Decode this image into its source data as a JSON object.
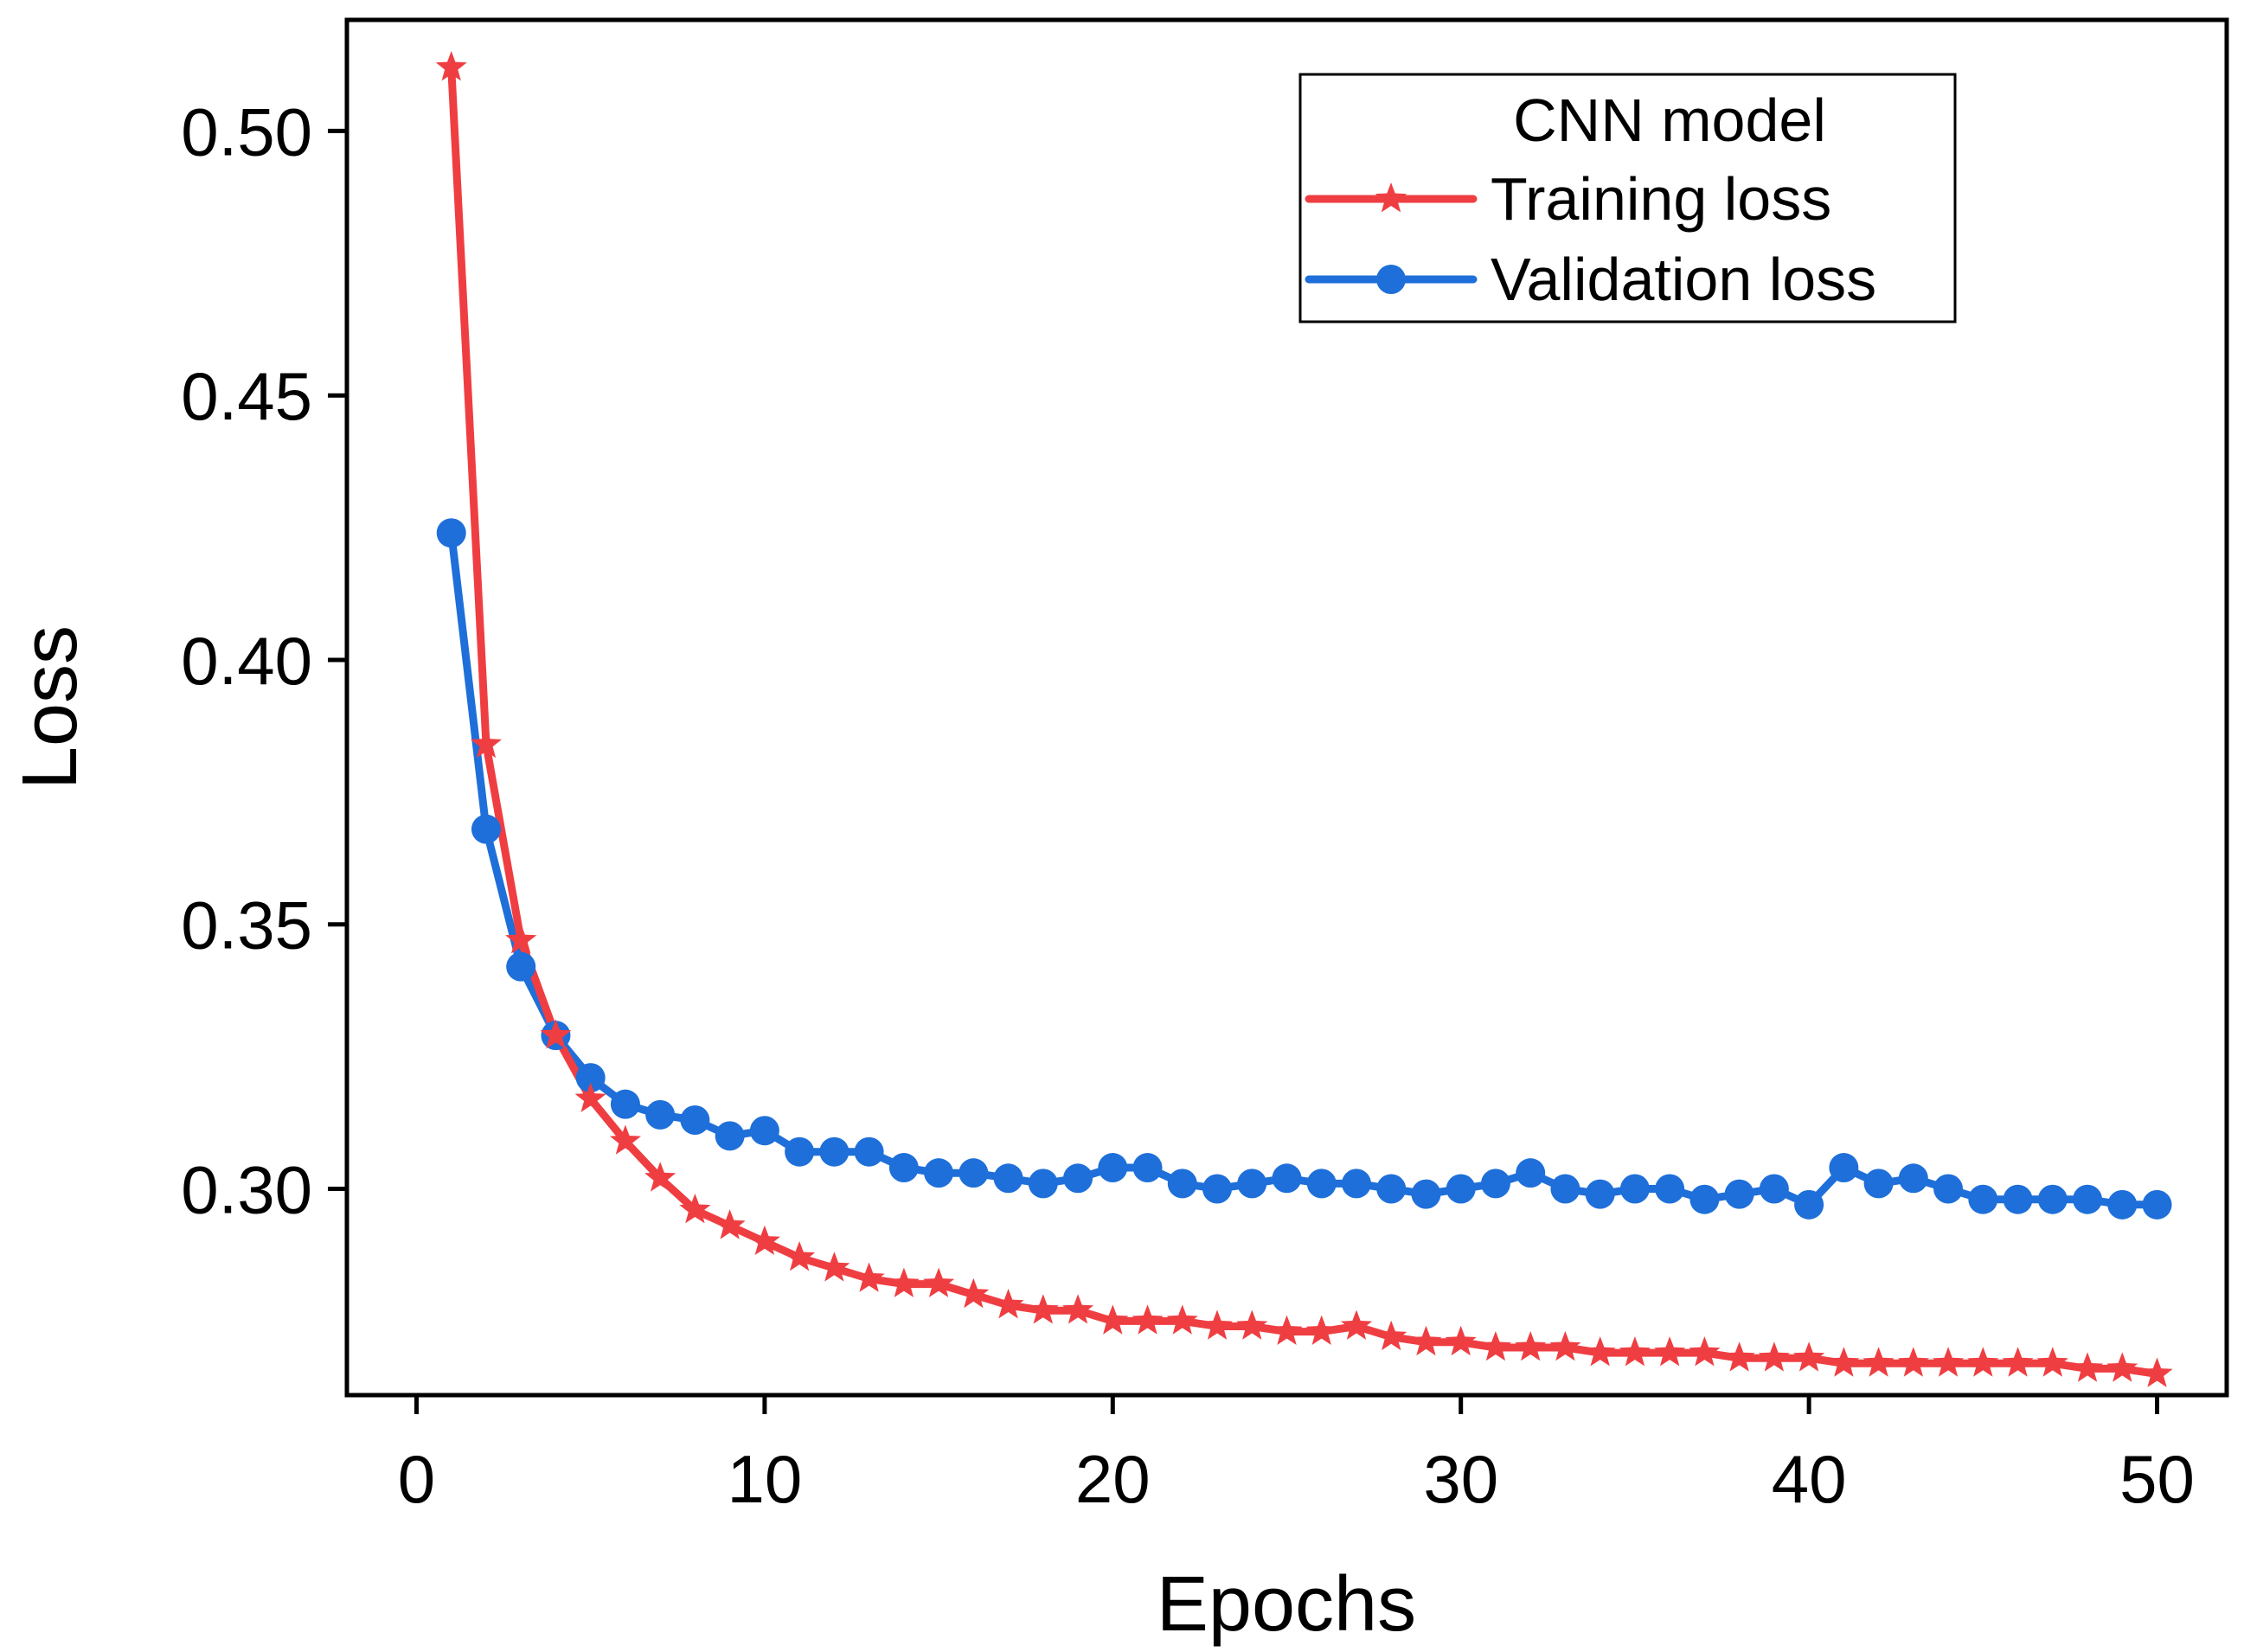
{
  "chart_data": {
    "type": "line",
    "xlabel": "Epochs",
    "ylabel": "Loss",
    "xlim": [
      -2,
      52
    ],
    "ylim": [
      0.261,
      0.521
    ],
    "xticks": [
      0,
      10,
      20,
      30,
      40,
      50
    ],
    "xtick_labels": [
      "0",
      "10",
      "20",
      "30",
      "40",
      "50"
    ],
    "yticks": [
      0.3,
      0.35,
      0.4,
      0.45,
      0.5
    ],
    "ytick_labels": [
      "0.30",
      "0.35",
      "0.40",
      "0.45",
      "0.50"
    ],
    "grid": false,
    "legend": {
      "title": "CNN model",
      "position": "top-right"
    },
    "x": [
      1,
      2,
      3,
      4,
      5,
      6,
      7,
      8,
      9,
      10,
      11,
      12,
      13,
      14,
      15,
      16,
      17,
      18,
      19,
      20,
      21,
      22,
      23,
      24,
      25,
      26,
      27,
      28,
      29,
      30,
      31,
      32,
      33,
      34,
      35,
      36,
      37,
      38,
      39,
      40,
      41,
      42,
      43,
      44,
      45,
      46,
      47,
      48,
      49,
      50
    ],
    "series": [
      {
        "name": "Training loss",
        "color": "#ef3e42",
        "marker": "star",
        "values": [
          0.512,
          0.384,
          0.347,
          0.329,
          0.317,
          0.309,
          0.302,
          0.296,
          0.293,
          0.29,
          0.287,
          0.285,
          0.283,
          0.282,
          0.282,
          0.28,
          0.278,
          0.277,
          0.277,
          0.275,
          0.275,
          0.275,
          0.274,
          0.274,
          0.273,
          0.273,
          0.274,
          0.272,
          0.271,
          0.271,
          0.27,
          0.27,
          0.27,
          0.269,
          0.269,
          0.269,
          0.269,
          0.268,
          0.268,
          0.268,
          0.267,
          0.267,
          0.267,
          0.267,
          0.267,
          0.267,
          0.267,
          0.266,
          0.266,
          0.265
        ]
      },
      {
        "name": "Validation loss",
        "color": "#1e6fd9",
        "marker": "circle",
        "values": [
          0.424,
          0.368,
          0.342,
          0.329,
          0.321,
          0.316,
          0.314,
          0.313,
          0.31,
          0.311,
          0.307,
          0.307,
          0.307,
          0.304,
          0.303,
          0.303,
          0.302,
          0.301,
          0.302,
          0.304,
          0.304,
          0.301,
          0.3,
          0.301,
          0.302,
          0.301,
          0.301,
          0.3,
          0.299,
          0.3,
          0.301,
          0.303,
          0.3,
          0.299,
          0.3,
          0.3,
          0.298,
          0.299,
          0.3,
          0.297,
          0.304,
          0.301,
          0.302,
          0.3,
          0.298,
          0.298,
          0.298,
          0.298,
          0.297,
          0.297
        ]
      }
    ]
  }
}
